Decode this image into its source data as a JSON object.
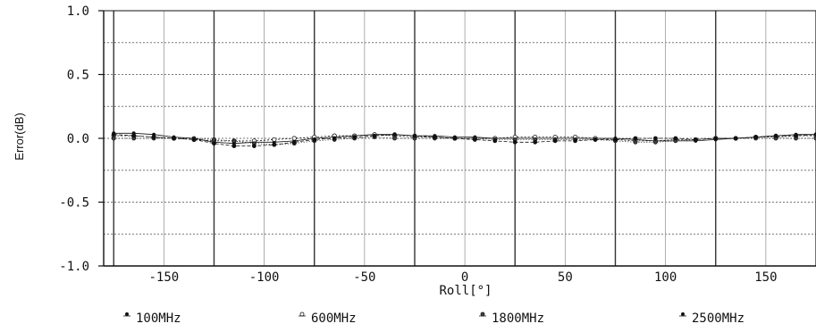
{
  "chart_data": {
    "type": "line",
    "xlabel": "Roll[°]",
    "ylabel": "Error(dB)",
    "xlim": [
      -180,
      175
    ],
    "ylim": [
      -1.0,
      1.0
    ],
    "grid": true,
    "legend_position": "bottom",
    "x_ticks": [
      -150,
      -100,
      -50,
      0,
      50,
      100,
      150
    ],
    "x_tick_labels": [
      "-150",
      "-100",
      "-50",
      "0",
      "50",
      "100",
      "150"
    ],
    "y_ticks": [
      1.0,
      0.5,
      0.0,
      -0.5,
      -1.0
    ],
    "y_tick_labels": [
      "1.0",
      "0.5",
      "0.0",
      "-0.5",
      "-1.0"
    ],
    "x": [
      -175,
      -165,
      -155,
      -145,
      -135,
      -125,
      -115,
      -105,
      -95,
      -85,
      -75,
      -65,
      -55,
      -45,
      -35,
      -25,
      -15,
      -5,
      5,
      15,
      25,
      35,
      45,
      55,
      65,
      75,
      85,
      95,
      105,
      115,
      125,
      135,
      145,
      155,
      165,
      175
    ],
    "series": [
      {
        "name": "100MHz",
        "color": "#111111",
        "values": [
          0.04,
          0.04,
          0.03,
          0.01,
          0.0,
          -0.03,
          -0.04,
          -0.03,
          -0.03,
          -0.02,
          0.0,
          0.01,
          0.02,
          0.03,
          0.03,
          0.02,
          0.02,
          0.01,
          0.01,
          0.0,
          0.0,
          0.0,
          0.0,
          0.0,
          0.0,
          0.0,
          -0.01,
          -0.02,
          -0.02,
          -0.02,
          -0.01,
          0.0,
          0.01,
          0.02,
          0.03,
          0.03
        ]
      },
      {
        "name": "600MHz",
        "color": "#111111",
        "values": [
          0.02,
          0.02,
          0.01,
          0.0,
          -0.01,
          -0.02,
          -0.02,
          -0.02,
          -0.01,
          0.0,
          0.01,
          0.02,
          0.02,
          0.03,
          0.02,
          0.01,
          0.01,
          0.0,
          0.0,
          0.0,
          0.01,
          0.01,
          0.01,
          0.01,
          0.0,
          -0.01,
          -0.02,
          -0.02,
          -0.01,
          -0.01,
          0.0,
          0.0,
          0.01,
          0.01,
          0.02,
          0.02
        ]
      },
      {
        "name": "1800MHz",
        "color": "#111111",
        "values": [
          0.0,
          0.0,
          0.0,
          0.0,
          0.0,
          -0.01,
          -0.02,
          -0.04,
          -0.05,
          -0.04,
          -0.02,
          -0.01,
          0.0,
          0.01,
          0.0,
          0.0,
          0.0,
          0.0,
          0.0,
          -0.01,
          -0.01,
          -0.01,
          -0.01,
          -0.01,
          -0.01,
          -0.02,
          -0.03,
          -0.03,
          -0.02,
          -0.01,
          0.0,
          0.0,
          0.0,
          0.0,
          0.0,
          0.0
        ]
      },
      {
        "name": "2500MHz",
        "color": "#111111",
        "values": [
          0.03,
          0.02,
          0.01,
          0.0,
          -0.01,
          -0.04,
          -0.06,
          -0.06,
          -0.05,
          -0.03,
          -0.01,
          0.0,
          0.01,
          0.02,
          0.03,
          0.02,
          0.01,
          0.0,
          -0.01,
          -0.02,
          -0.03,
          -0.03,
          -0.02,
          -0.02,
          -0.01,
          -0.01,
          0.0,
          0.0,
          0.0,
          -0.01,
          0.0,
          0.0,
          0.01,
          0.02,
          0.02,
          0.03
        ]
      }
    ]
  }
}
